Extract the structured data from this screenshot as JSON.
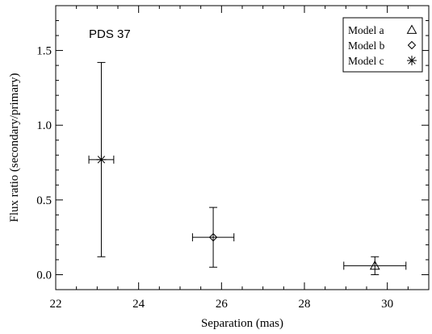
{
  "chart_data": {
    "type": "scatter",
    "annotation": "PDS 37",
    "xlabel": "Separation (mas)",
    "ylabel": "Flux ratio (secondary/primary)",
    "xlim": [
      22,
      31
    ],
    "ylim": [
      -0.1,
      1.8
    ],
    "x_ticks": [
      22,
      24,
      26,
      28,
      30
    ],
    "y_ticks": [
      0.0,
      0.5,
      1.0,
      1.5
    ],
    "x_tick_labels": [
      "22",
      "24",
      "26",
      "28",
      "30"
    ],
    "y_tick_labels": [
      "0.0",
      "0.5",
      "1.0",
      "1.5"
    ],
    "legend_position": "top-right",
    "series": [
      {
        "name": "Model a",
        "marker": "triangle",
        "x": 29.7,
        "y": 0.06,
        "x_err": [
          0.75,
          0.75
        ],
        "y_err": [
          0.06,
          0.06
        ]
      },
      {
        "name": "Model b",
        "marker": "diamond",
        "x": 25.8,
        "y": 0.25,
        "x_err": [
          0.5,
          0.5
        ],
        "y_err": [
          0.2,
          0.2
        ]
      },
      {
        "name": "Model c",
        "marker": "asterisk",
        "x": 23.1,
        "y": 0.77,
        "x_err": [
          0.3,
          0.3
        ],
        "y_err": [
          0.65,
          0.65
        ]
      }
    ]
  }
}
